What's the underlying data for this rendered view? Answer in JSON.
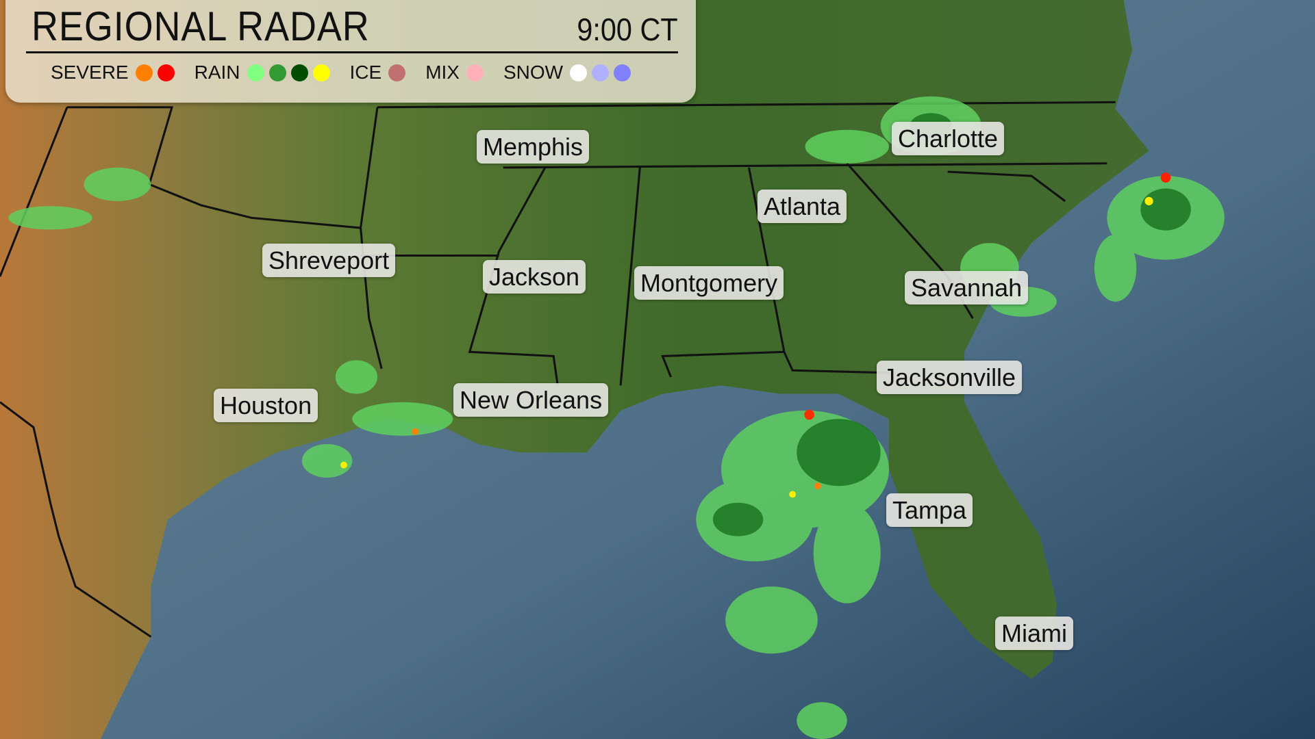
{
  "header": {
    "title": "REGIONAL RADAR",
    "time": "9:00 CT"
  },
  "legend": [
    {
      "label": "SEVERE",
      "colors": [
        "#ff8000",
        "#ff0000"
      ]
    },
    {
      "label": "RAIN",
      "colors": [
        "#80ff80",
        "#339933",
        "#004d00",
        "#ffff00"
      ]
    },
    {
      "label": "ICE",
      "colors": [
        "#c07070"
      ]
    },
    {
      "label": "MIX",
      "colors": [
        "#ffb0b8"
      ]
    },
    {
      "label": "SNOW",
      "colors": [
        "#ffffff",
        "#b0b0ff",
        "#8080ff"
      ]
    }
  ],
  "cities": [
    "Memphis",
    "Charlotte",
    "Atlanta",
    "Shreveport",
    "Jackson",
    "Montgomery",
    "Savannah",
    "Houston",
    "New Orleans",
    "Jacksonville",
    "Tampa",
    "Miami"
  ]
}
